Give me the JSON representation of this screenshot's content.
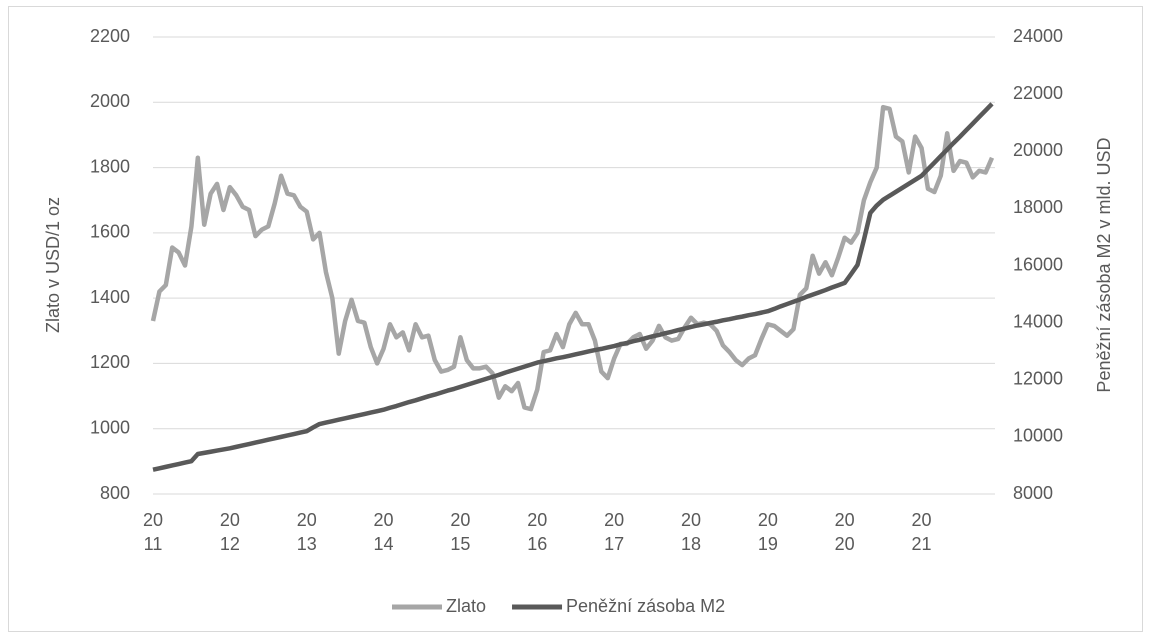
{
  "chart_data": {
    "type": "line",
    "y_label": "Zlato v USD/1 oz",
    "y2_label": "Peněžní zásoba M2 v mld. USD",
    "categories": [
      "2011",
      null,
      null,
      null,
      null,
      null,
      null,
      null,
      null,
      null,
      null,
      null,
      "2012",
      null,
      null,
      null,
      null,
      null,
      null,
      null,
      null,
      null,
      null,
      null,
      "2013",
      null,
      null,
      null,
      null,
      null,
      null,
      null,
      null,
      null,
      null,
      null,
      "2014",
      null,
      null,
      null,
      null,
      null,
      null,
      null,
      null,
      null,
      null,
      null,
      "2015",
      null,
      null,
      null,
      null,
      null,
      null,
      null,
      null,
      null,
      null,
      null,
      "2016",
      null,
      null,
      null,
      null,
      null,
      null,
      null,
      null,
      null,
      null,
      null,
      "2017",
      null,
      null,
      null,
      null,
      null,
      null,
      null,
      null,
      null,
      null,
      null,
      "2018",
      null,
      null,
      null,
      null,
      null,
      null,
      null,
      null,
      null,
      null,
      null,
      "2019",
      null,
      null,
      null,
      null,
      null,
      null,
      null,
      null,
      null,
      null,
      null,
      "2020",
      null,
      null,
      null,
      null,
      null,
      null,
      null,
      null,
      null,
      null,
      null,
      "2021",
      null,
      null,
      null,
      null,
      null,
      null,
      null,
      null,
      null,
      null,
      null
    ],
    "series": [
      {
        "name": "Zlato",
        "color": "#a6a6a6",
        "axis": "y",
        "values": [
          1330,
          1420,
          1440,
          1555,
          1540,
          1500,
          1620,
          1830,
          1625,
          1720,
          1750,
          1670,
          1740,
          1715,
          1680,
          1670,
          1590,
          1610,
          1620,
          1690,
          1775,
          1720,
          1715,
          1680,
          1665,
          1580,
          1600,
          1480,
          1400,
          1230,
          1330,
          1395,
          1330,
          1325,
          1250,
          1200,
          1245,
          1320,
          1280,
          1295,
          1240,
          1320,
          1280,
          1285,
          1210,
          1175,
          1180,
          1190,
          1280,
          1210,
          1185,
          1185,
          1190,
          1170,
          1095,
          1130,
          1115,
          1140,
          1065,
          1060,
          1120,
          1235,
          1240,
          1290,
          1250,
          1320,
          1355,
          1320,
          1320,
          1270,
          1175,
          1155,
          1215,
          1260,
          1260,
          1280,
          1290,
          1245,
          1270,
          1315,
          1280,
          1270,
          1275,
          1310,
          1340,
          1320,
          1325,
          1320,
          1300,
          1255,
          1235,
          1210,
          1195,
          1215,
          1225,
          1275,
          1320,
          1315,
          1300,
          1285,
          1305,
          1410,
          1430,
          1530,
          1475,
          1510,
          1470,
          1525,
          1585,
          1570,
          1600,
          1700,
          1755,
          1800,
          1985,
          1980,
          1895,
          1880,
          1785,
          1895,
          1860,
          1735,
          1725,
          1775,
          1905,
          1790,
          1820,
          1815,
          1770,
          1790,
          1785,
          1830
        ]
      },
      {
        "name": "Peněžní zásoba M2",
        "color": "#595959",
        "axis": "y2",
        "values": [
          8850,
          8900,
          8950,
          9000,
          9050,
          9100,
          9150,
          9400,
          9440,
          9480,
          9520,
          9560,
          9600,
          9650,
          9700,
          9750,
          9800,
          9850,
          9900,
          9950,
          10000,
          10050,
          10100,
          10150,
          10200,
          10330,
          10450,
          10500,
          10550,
          10600,
          10650,
          10700,
          10750,
          10800,
          10850,
          10900,
          10950,
          11020,
          11080,
          11150,
          11220,
          11280,
          11350,
          11420,
          11480,
          11550,
          11620,
          11680,
          11750,
          11820,
          11890,
          11960,
          12030,
          12100,
          12170,
          12250,
          12320,
          12390,
          12460,
          12530,
          12600,
          12650,
          12700,
          12750,
          12790,
          12840,
          12890,
          12940,
          12990,
          13040,
          13080,
          13130,
          13180,
          13240,
          13290,
          13350,
          13400,
          13460,
          13520,
          13570,
          13630,
          13680,
          13740,
          13790,
          13850,
          13900,
          13940,
          13990,
          14030,
          14080,
          14120,
          14170,
          14210,
          14260,
          14300,
          14350,
          14400,
          14480,
          14570,
          14650,
          14730,
          14810,
          14900,
          14980,
          15060,
          15140,
          15230,
          15310,
          15390,
          15700,
          16020,
          16900,
          17840,
          18100,
          18300,
          18440,
          18580,
          18720,
          18860,
          19000,
          19140,
          19370,
          19600,
          19830,
          20060,
          20290,
          20510,
          20740,
          20970,
          21200,
          21430,
          21660
        ]
      }
    ],
    "ylim": [
      800,
      2200
    ],
    "yticks": [
      800,
      1000,
      1200,
      1400,
      1600,
      1800,
      2000,
      2200
    ],
    "y2lim": [
      8000,
      24000
    ],
    "y2ticks": [
      8000,
      10000,
      12000,
      14000,
      16000,
      18000,
      20000,
      22000,
      24000
    ],
    "grid": true,
    "legend": "bottom"
  }
}
